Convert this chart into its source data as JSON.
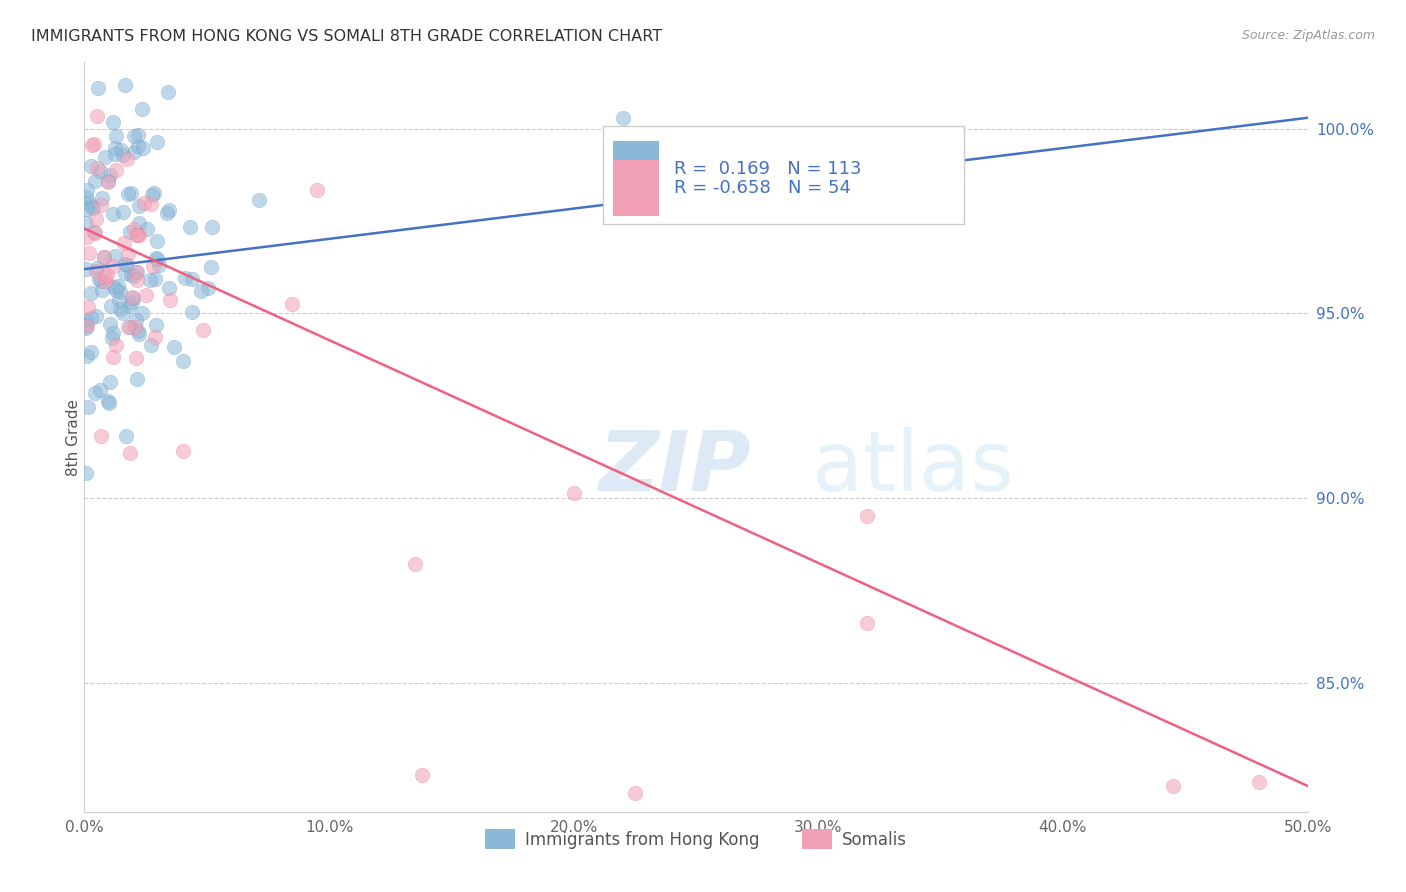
{
  "title": "IMMIGRANTS FROM HONG KONG VS SOMALI 8TH GRADE CORRELATION CHART",
  "source": "Source: ZipAtlas.com",
  "ylabel": "8th Grade",
  "x_min": 0.0,
  "x_max": 50.0,
  "y_min": 81.5,
  "y_max": 101.8,
  "x_ticks": [
    0.0,
    10.0,
    20.0,
    30.0,
    40.0,
    50.0
  ],
  "x_tick_labels": [
    "0.0%",
    "10.0%",
    "20.0%",
    "30.0%",
    "40.0%",
    "50.0%"
  ],
  "y_ticks_right": [
    85.0,
    90.0,
    95.0,
    100.0
  ],
  "y_tick_labels_right": [
    "85.0%",
    "90.0%",
    "95.0%",
    "100.0%"
  ],
  "blue_color": "#8BB8D8",
  "pink_color": "#F2A0B5",
  "blue_edge_color": "#6090C0",
  "pink_edge_color": "#E07090",
  "blue_line_color": "#4472C4",
  "pink_line_color": "#F06080",
  "r_blue": 0.169,
  "n_blue": 113,
  "r_pink": -0.658,
  "n_pink": 54,
  "legend_label_blue": "Immigrants from Hong Kong",
  "legend_label_pink": "Somalis",
  "watermark": "ZIPatlas",
  "blue_line_x": [
    0.0,
    50.0
  ],
  "blue_line_y": [
    96.2,
    100.3
  ],
  "pink_line_x": [
    0.0,
    50.0
  ],
  "pink_line_y": [
    97.3,
    82.2
  ]
}
